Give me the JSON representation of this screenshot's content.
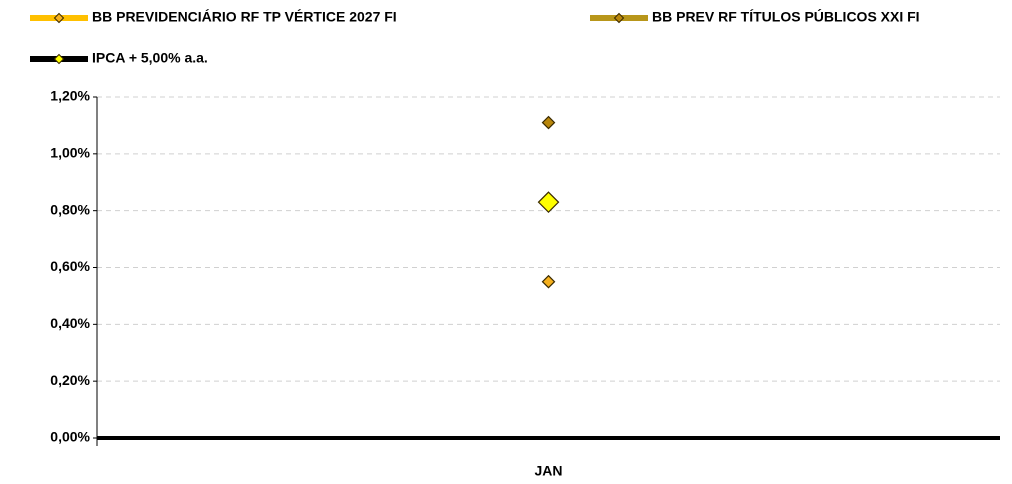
{
  "chart_data": {
    "type": "line",
    "categories": [
      "JAN"
    ],
    "series": [
      {
        "name": "BB PREVIDENCIÁRIO RF TP VÉRTICE 2027 FI",
        "color": "#ffc000",
        "marker_color": "#f5b01e",
        "values": [
          0.55
        ]
      },
      {
        "name": "BB PREV RF TÍTULOS PÚBLICOS XXI FI",
        "color": "#b8961a",
        "marker_color": "#b8860b",
        "values": [
          1.11
        ]
      },
      {
        "name": "IPCA + 5,00% a.a.",
        "color": "#000000",
        "marker_color": "#ffff00",
        "values": [
          0.83
        ]
      }
    ],
    "ylim": [
      0,
      1.2
    ],
    "yticks": [
      {
        "value": 0,
        "label": "0,00%"
      },
      {
        "value": 0.2,
        "label": "0,20%"
      },
      {
        "value": 0.4,
        "label": "0,40%"
      },
      {
        "value": 0.6,
        "label": "0,60%"
      },
      {
        "value": 0.8,
        "label": "0,80%"
      },
      {
        "value": 1.0,
        "label": "1,00%"
      },
      {
        "value": 1.2,
        "label": "1,20%"
      }
    ],
    "grid": true
  }
}
